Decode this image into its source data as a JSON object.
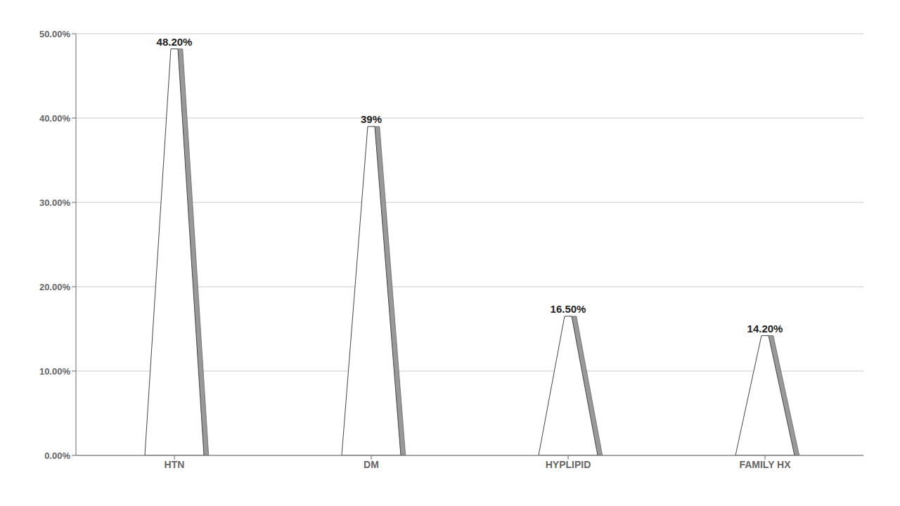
{
  "chart_data": {
    "type": "bar",
    "categories": [
      "HTN",
      "DM",
      "HYPLIPID",
      "FAMILY HX"
    ],
    "values": [
      48.2,
      39.0,
      16.5,
      14.2
    ],
    "value_labels": [
      "48.20%",
      "39%",
      "16.50%",
      "14.20%"
    ],
    "data_labels": true,
    "ylim": [
      0,
      50
    ],
    "yticks": [
      {
        "value": 0,
        "label": "0.00%"
      },
      {
        "value": 10,
        "label": "10.00%"
      },
      {
        "value": 20,
        "label": "20.00%"
      },
      {
        "value": 30,
        "label": "30.00%"
      },
      {
        "value": 40,
        "label": "40.00%"
      },
      {
        "value": 50,
        "label": "50.00%"
      }
    ],
    "grid": true
  }
}
